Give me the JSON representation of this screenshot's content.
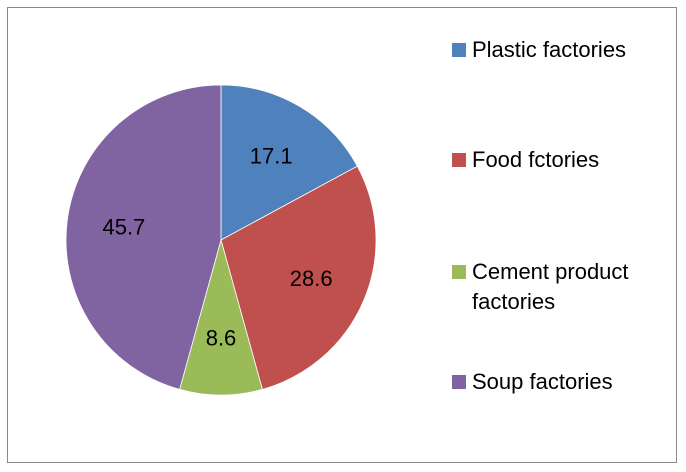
{
  "chart_data": {
    "type": "pie",
    "title": "",
    "slices": [
      {
        "label": "Plastic factories",
        "value": 17.1,
        "display": "17.1",
        "color": "#4F81BD"
      },
      {
        "label": "Food fctories",
        "value": 28.6,
        "display": "28.6",
        "color": "#C0504D"
      },
      {
        "label": "Cement product factories",
        "value": 8.6,
        "display": "8.6",
        "color": "#9BBB59"
      },
      {
        "label": "Soup factories",
        "value": 45.7,
        "display": "45.7",
        "color": "#8064A2"
      }
    ],
    "start_angle": "12 o'clock",
    "direction": "clockwise",
    "legend_position": "right"
  },
  "legend": {
    "items": [
      {
        "label": "Plastic factories",
        "color": "#4F81BD"
      },
      {
        "label": "Food fctories",
        "color": "#C0504D"
      },
      {
        "label": "Cement product factories",
        "color": "#9BBB59"
      },
      {
        "label": "Soup factories",
        "color": "#8064A2"
      }
    ]
  }
}
